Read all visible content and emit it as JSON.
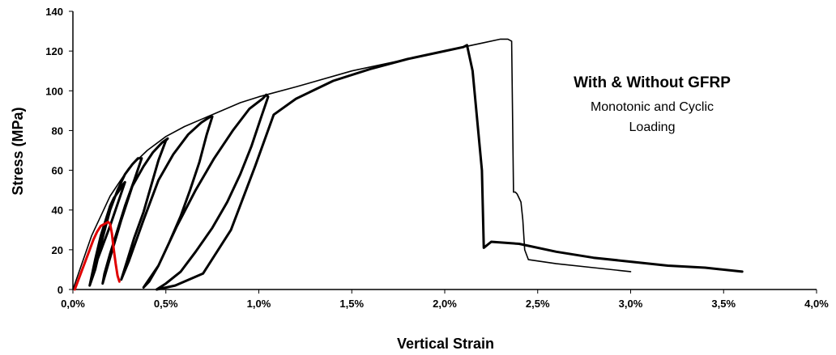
{
  "chart_data": {
    "type": "line",
    "title": "",
    "xlabel": "Vertical Strain",
    "ylabel": "Stress (MPa)",
    "xlim": [
      0,
      4
    ],
    "ylim": [
      0,
      140
    ],
    "x_ticks": [
      0,
      0.5,
      1,
      1.5,
      2,
      2.5,
      3,
      3.5,
      4
    ],
    "x_tick_labels": [
      "0,0%",
      "0,5%",
      "1,0%",
      "1,5%",
      "2,0%",
      "2,5%",
      "3,0%",
      "3,5%",
      "4,0%"
    ],
    "y_ticks": [
      0,
      20,
      40,
      60,
      80,
      100,
      120,
      140
    ],
    "y_tick_labels": [
      "0",
      "20",
      "40",
      "60",
      "80",
      "100",
      "120",
      "140"
    ],
    "grid": false,
    "legend": "none",
    "annotation": {
      "title": "With & Without GFRP",
      "lines": [
        "Monotonic and Cyclic",
        "Loading"
      ]
    },
    "series": [
      {
        "color": "#000000",
        "x": [
          0,
          0.1,
          0.2,
          0.3,
          0.4,
          0.5,
          0.6,
          0.7,
          0.8,
          0.9,
          1.0,
          1.2,
          1.5,
          1.8,
          2.0,
          2.1,
          2.2,
          2.3,
          2.34,
          2.36,
          2.37,
          2.38,
          2.39,
          2.41,
          2.42,
          2.43,
          2.45,
          2.6,
          2.8,
          3.0
        ],
        "y": [
          0,
          27,
          47,
          61,
          70,
          77,
          82,
          86,
          90,
          94,
          97,
          102,
          110,
          116,
          120,
          122,
          124,
          126,
          126,
          125,
          49,
          49,
          48,
          44,
          35,
          20,
          15,
          13,
          11,
          9
        ]
      },
      {
        "color": "#000000",
        "x": [
          0.09,
          0.12,
          0.15,
          0.18,
          0.2,
          0.22,
          0.25,
          0.27,
          0.28,
          0.24,
          0.2,
          0.16,
          0.12,
          0.1,
          0.09,
          0.12,
          0.16,
          0.2,
          0.24,
          0.28,
          0.32,
          0.35,
          0.37,
          0.33,
          0.28,
          0.24,
          0.2,
          0.17,
          0.16,
          0.2,
          0.26,
          0.32,
          0.38,
          0.43,
          0.48,
          0.51,
          0.5,
          0.46,
          0.42,
          0.38,
          0.33,
          0.29,
          0.26,
          0.3,
          0.38,
          0.46,
          0.54,
          0.62,
          0.69,
          0.74,
          0.75,
          0.72,
          0.68,
          0.63,
          0.58,
          0.52,
          0.46,
          0.41,
          0.38,
          0.46,
          0.56,
          0.66,
          0.76,
          0.86,
          0.95,
          1.02,
          1.04,
          1.05,
          1.01,
          0.96,
          0.9,
          0.83,
          0.75,
          0.66,
          0.58,
          0.5,
          0.45,
          0.55,
          0.7,
          0.85,
          0.98,
          1.08,
          1.2,
          1.4,
          1.6,
          1.8,
          2.0,
          2.1,
          2.12,
          2.15,
          2.2,
          2.21,
          2.25,
          2.4,
          2.6,
          2.8,
          3.0,
          3.2,
          3.4,
          3.6
        ],
        "y": [
          2,
          15,
          27,
          36,
          42,
          46,
          50,
          53,
          54,
          43,
          32,
          22,
          12,
          5,
          2,
          10,
          26,
          40,
          50,
          58,
          63,
          66,
          66,
          55,
          42,
          30,
          18,
          8,
          3,
          16,
          35,
          52,
          62,
          69,
          74,
          76,
          75,
          65,
          52,
          39,
          26,
          14,
          5,
          14,
          35,
          55,
          68,
          78,
          84,
          87,
          87,
          78,
          64,
          50,
          37,
          24,
          12,
          4,
          1,
          12,
          32,
          50,
          66,
          80,
          91,
          96,
          98,
          97,
          86,
          72,
          58,
          44,
          31,
          19,
          9,
          3,
          0,
          2,
          8,
          30,
          62,
          88,
          96,
          105,
          111,
          116,
          120,
          122,
          123,
          110,
          60,
          21,
          24,
          23,
          19,
          16,
          14,
          12,
          11,
          9
        ]
      },
      {
        "color": "#e00000",
        "x": [
          0.01,
          0.03,
          0.05,
          0.07,
          0.09,
          0.11,
          0.13,
          0.15,
          0.17,
          0.19,
          0.2,
          0.21,
          0.22,
          0.23,
          0.24,
          0.25
        ],
        "y": [
          0,
          5,
          10,
          15,
          20,
          25,
          29,
          32,
          33,
          34,
          33,
          28,
          20,
          13,
          7,
          4
        ]
      }
    ]
  }
}
